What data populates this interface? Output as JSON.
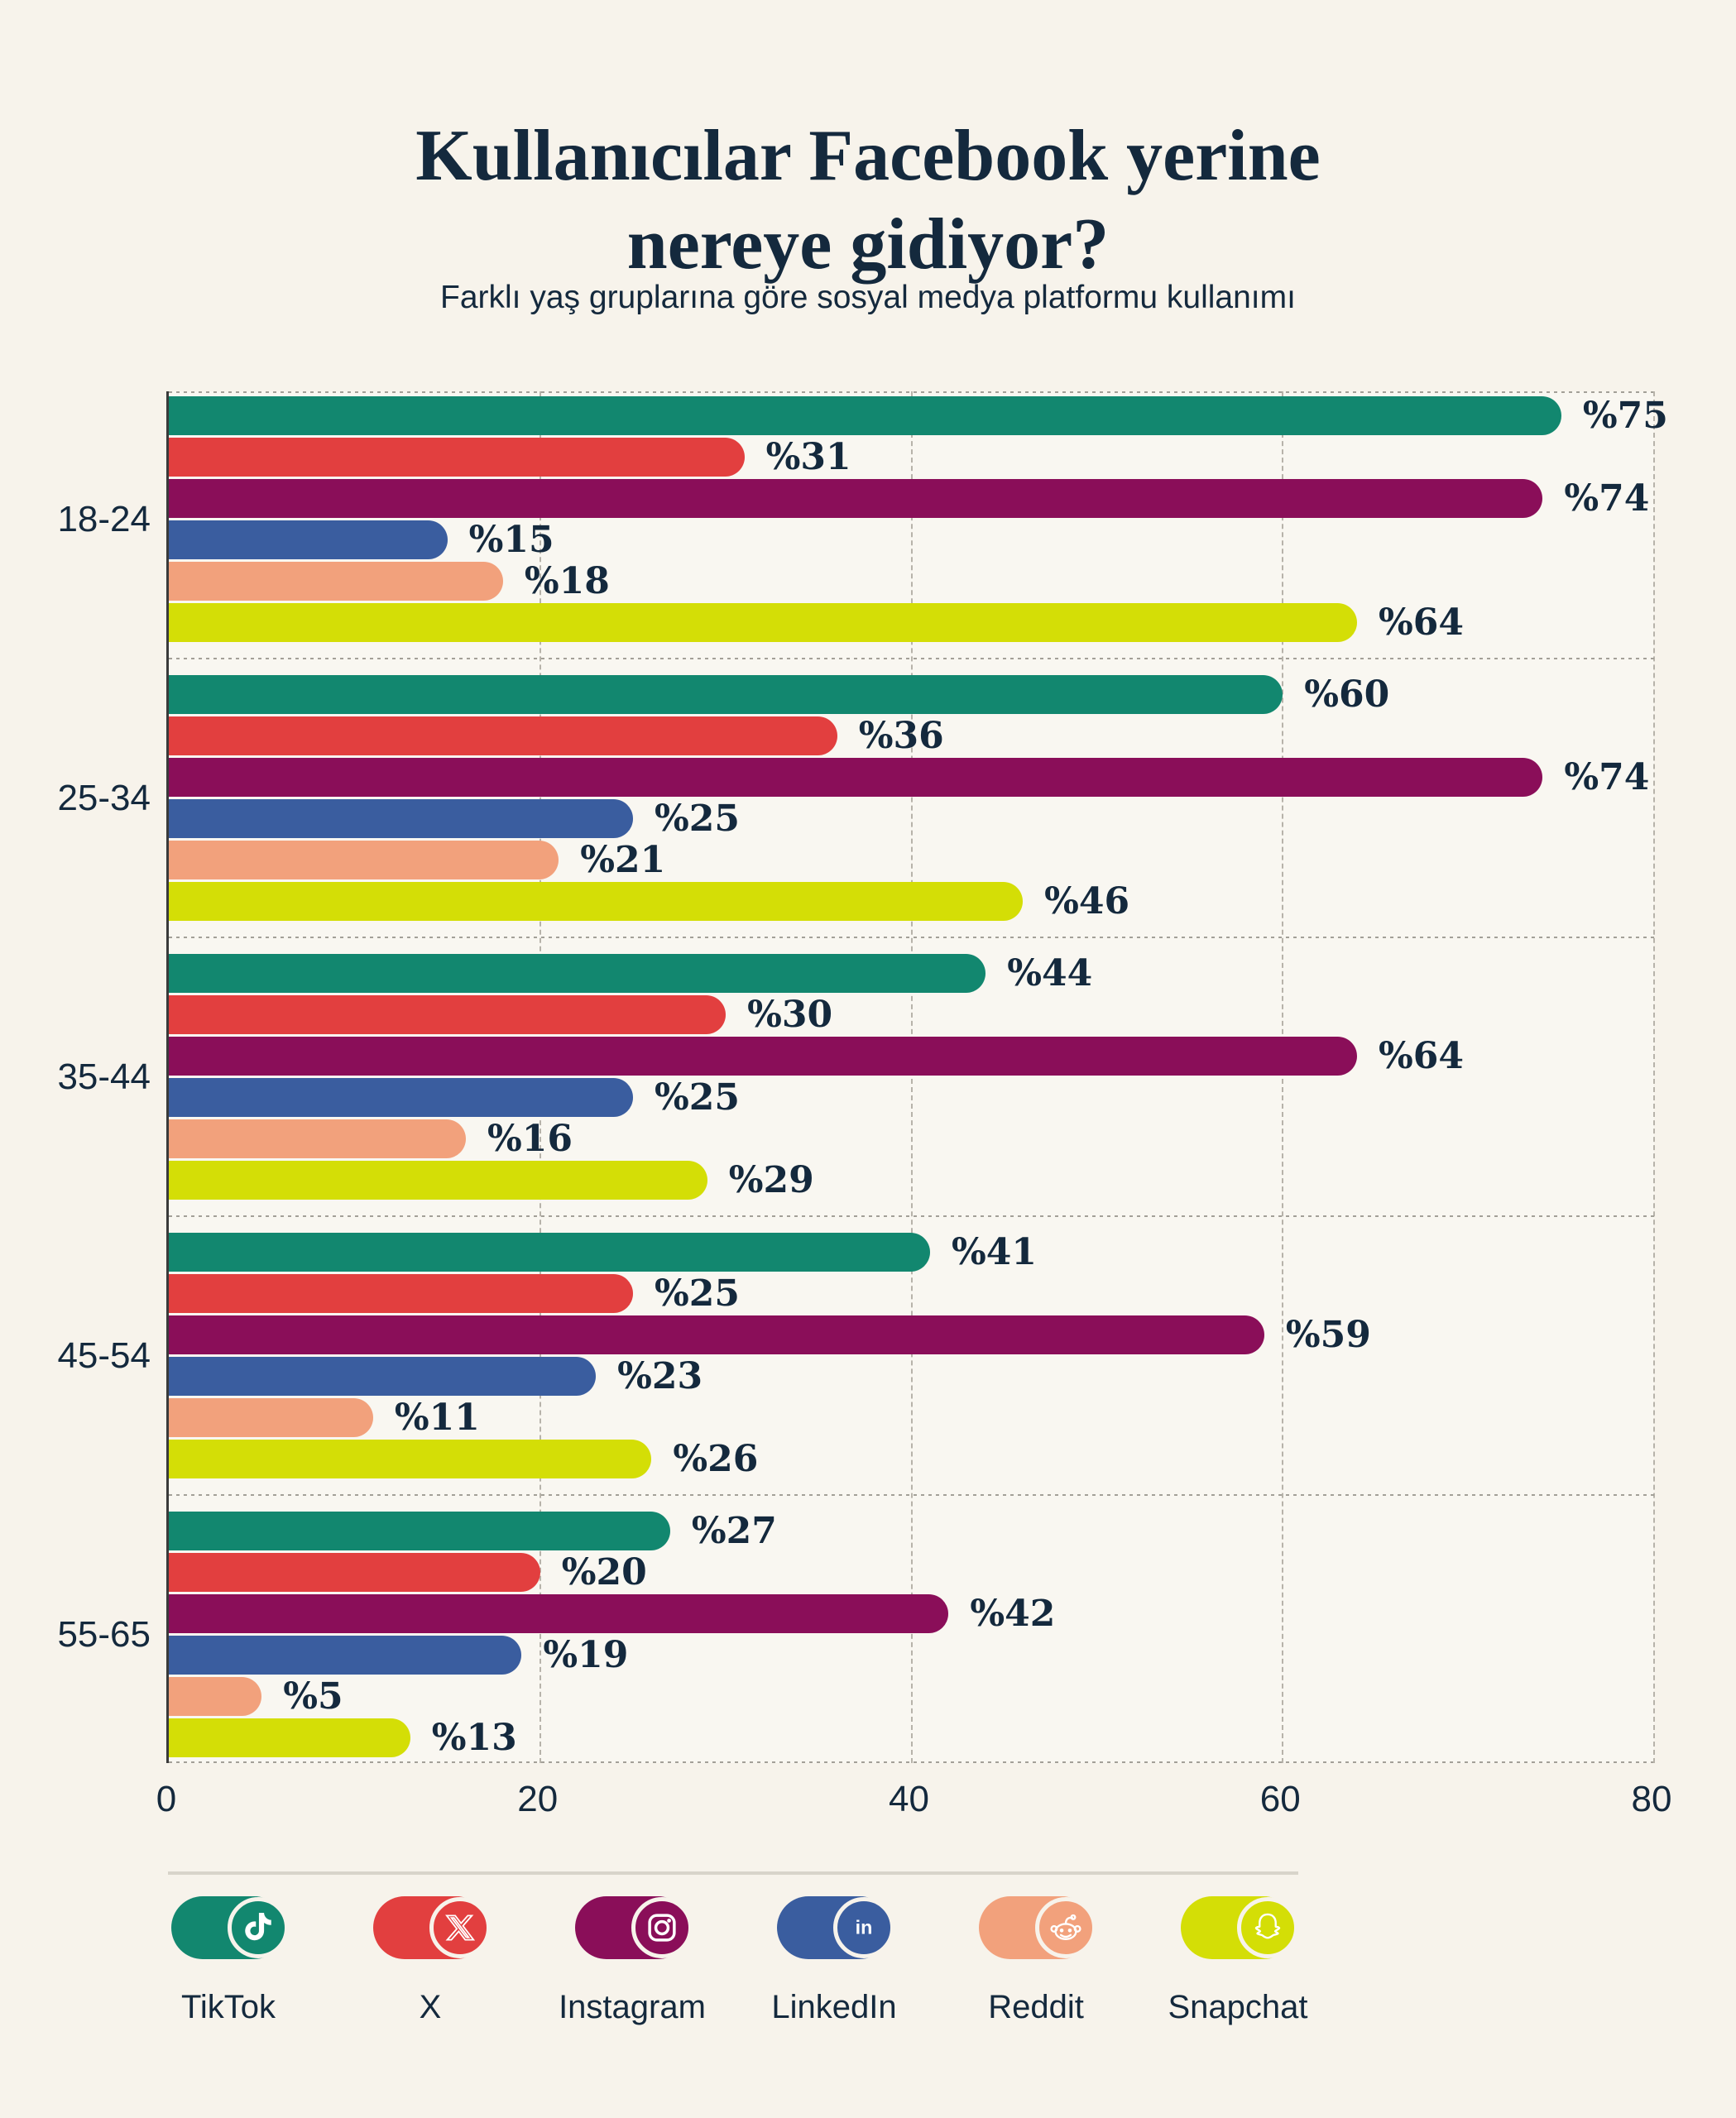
{
  "title_line1": "Kullanıcılar Facebook yerine",
  "title_line2": "nereye gidiyor?",
  "subtitle": "Farklı yaş gruplarına göre sosyal medya platformu kullanımı",
  "colors": {
    "background": "#F7F3EB",
    "plot_background": "#F9F7F1",
    "text": "#14293D",
    "grid": "#B7B3AA",
    "axis": "#3A3A3A",
    "divider": "#D8D4CA"
  },
  "chart_data": {
    "type": "bar",
    "orientation": "horizontal",
    "title": "Kullanıcılar Facebook yerine nereye gidiyor?",
    "subtitle": "Farklı yaş gruplarına göre sosyal medya platformu kullanımı",
    "categories": [
      "18-24",
      "25-34",
      "35-44",
      "45-54",
      "55-65"
    ],
    "series": [
      {
        "name": "TikTok",
        "color": "#12876F",
        "icon": "tiktok-icon",
        "values": [
          75,
          60,
          44,
          41,
          27
        ]
      },
      {
        "name": "X",
        "color": "#E23F3F",
        "icon": "x-icon",
        "values": [
          31,
          36,
          30,
          25,
          20
        ]
      },
      {
        "name": "Instagram",
        "color": "#8A0E59",
        "icon": "instagram-icon",
        "values": [
          74,
          74,
          64,
          59,
          42
        ]
      },
      {
        "name": "LinkedIn",
        "color": "#3A5D9F",
        "icon": "linkedin-icon",
        "values": [
          15,
          25,
          25,
          23,
          19
        ]
      },
      {
        "name": "Reddit",
        "color": "#F2A17C",
        "icon": "reddit-icon",
        "values": [
          18,
          21,
          16,
          11,
          5
        ]
      },
      {
        "name": "Snapchat",
        "color": "#D4DE06",
        "icon": "snapchat-icon",
        "values": [
          64,
          46,
          29,
          26,
          13
        ]
      }
    ],
    "value_prefix": "%",
    "x_ticks": [
      0,
      20,
      40,
      60,
      80
    ],
    "xlim": [
      0,
      80
    ],
    "grid": "dashed-vertical-gridlines",
    "legend_position": "bottom"
  }
}
